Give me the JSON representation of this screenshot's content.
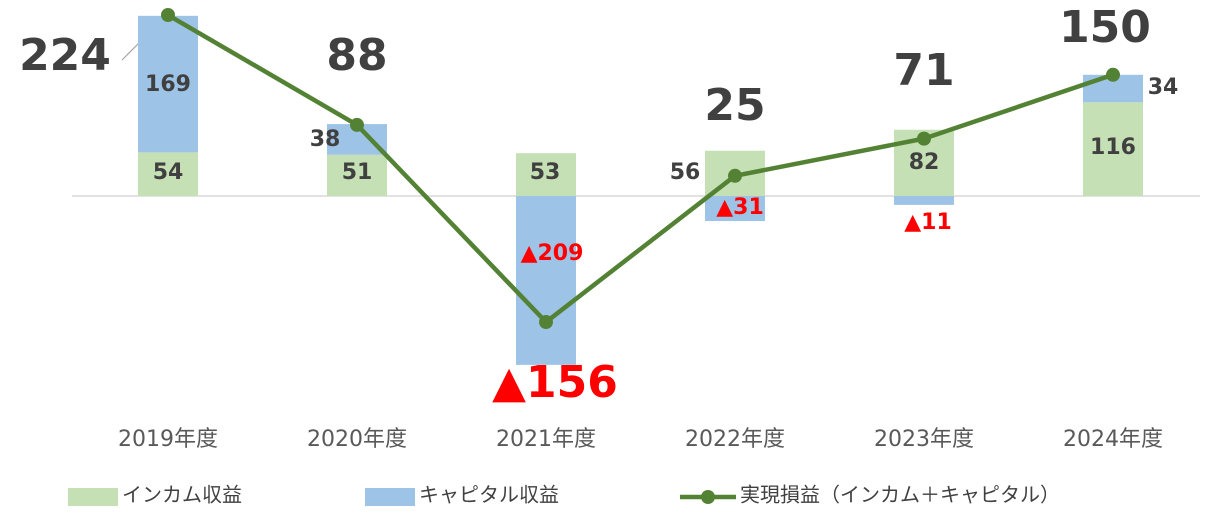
{
  "chart_data": {
    "type": "bar",
    "stacked": true,
    "categories": [
      "2019年度",
      "2020年度",
      "2021年度",
      "2022年度",
      "2023年度",
      "2024年度"
    ],
    "series": [
      {
        "name": "インカム収益",
        "color": "#c5e0b4",
        "values": [
          54,
          51,
          53,
          56,
          82,
          116
        ]
      },
      {
        "name": "キャピタル収益",
        "color": "#9dc3e6",
        "values": [
          169,
          38,
          -209,
          -31,
          -11,
          34
        ],
        "value_labels": [
          "169",
          "38",
          "▲209",
          "▲31",
          "▲11",
          "34"
        ]
      },
      {
        "name": "実現損益（インカム＋キャピタル）",
        "type": "line",
        "color": "#548235",
        "values": [
          224,
          88,
          -156,
          25,
          71,
          150
        ],
        "value_labels": [
          "224",
          "88",
          "▲156",
          "25",
          "71",
          "150"
        ]
      }
    ],
    "legend": "bottom"
  }
}
